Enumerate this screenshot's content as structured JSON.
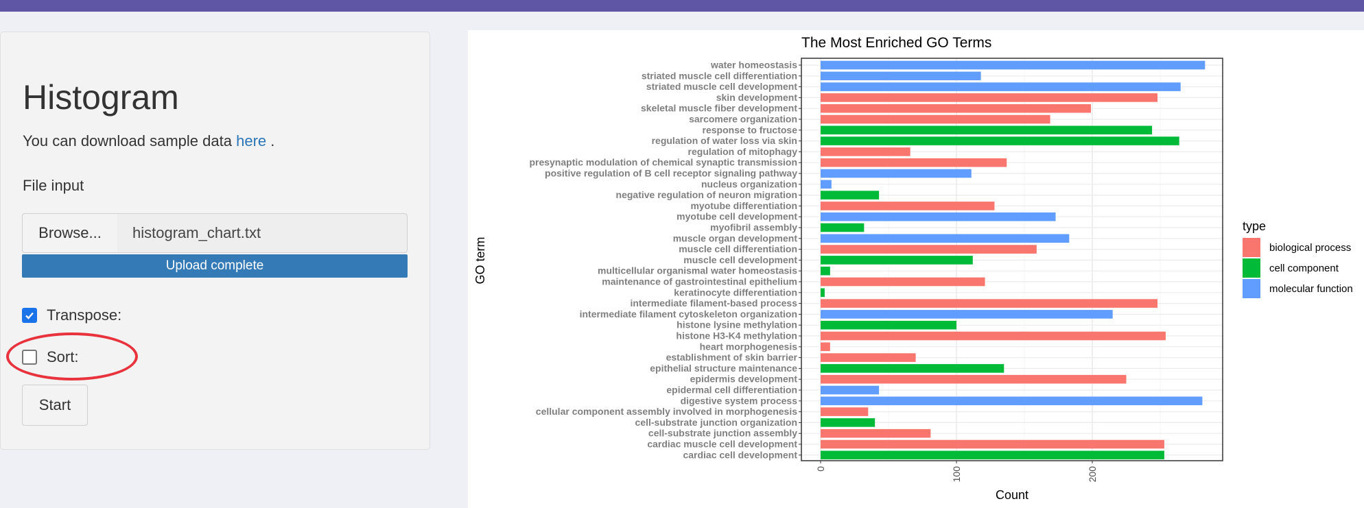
{
  "sidebar": {
    "title": "Histogram",
    "desc_prefix": "You can download sample data ",
    "desc_link": "here",
    "desc_suffix": " .",
    "file_input_label": "File input",
    "browse_label": "Browse...",
    "file_name": "histogram_chart.txt",
    "upload_status": "Upload complete",
    "upload_progress": 1.0,
    "transpose_label": "Transpose:",
    "transpose_checked": true,
    "sort_label": "Sort:",
    "sort_checked": false,
    "start_label": "Start"
  },
  "colors": {
    "topbar": "#5f57a5",
    "accent": "#337ab7",
    "biological process": "#f8766d",
    "cell component": "#00ba38",
    "molecular function": "#619cff",
    "highlight": "#e8323c"
  },
  "chart_data": {
    "type": "bar",
    "orientation": "horizontal",
    "title": "The Most Enriched GO Terms",
    "xlabel": "Count",
    "ylabel": "GO term",
    "xlim": [
      0,
      290
    ],
    "xticks": [
      "0",
      "100",
      "200"
    ],
    "xtick_values": [
      0,
      100,
      200
    ],
    "grid": true,
    "legend": {
      "title": "type",
      "placement": "right",
      "entries": [
        "biological process",
        "cell component",
        "molecular function"
      ]
    },
    "categories": [
      "water homeostasis",
      "striated muscle cell differentiation",
      "striated muscle cell development",
      "skin development",
      "skeletal muscle fiber development",
      "sarcomere organization",
      "response to fructose",
      "regulation of water loss via skin",
      "regulation of mitophagy",
      "presynaptic modulation of chemical synaptic transmission",
      "positive regulation of B cell receptor signaling pathway",
      "nucleus organization",
      "negative regulation of neuron migration",
      "myotube differentiation",
      "myotube cell development",
      "myofibril assembly",
      "muscle organ development",
      "muscle cell differentiation",
      "muscle cell development",
      "multicellular organismal water homeostasis",
      "maintenance of gastrointestinal epithelium",
      "keratinocyte differentiation",
      "intermediate filament-based process",
      "intermediate filament cytoskeleton organization",
      "histone lysine methylation",
      "histone H3-K4 methylation",
      "heart morphogenesis",
      "establishment of skin barrier",
      "epithelial structure maintenance",
      "epidermis development",
      "epidermal cell differentiation",
      "digestive system process",
      "cellular component assembly involved in morphogenesis",
      "cell-substrate junction organization",
      "cell-substrate junction assembly",
      "cardiac muscle cell development",
      "cardiac cell development"
    ],
    "values": [
      283,
      118,
      265,
      248,
      199,
      169,
      244,
      264,
      66,
      137,
      111,
      8,
      43,
      128,
      173,
      32,
      183,
      159,
      112,
      7,
      121,
      3,
      248,
      215,
      100,
      254,
      7,
      70,
      135,
      225,
      43,
      281,
      35,
      40,
      81,
      253,
      253
    ],
    "types": [
      "molecular function",
      "molecular function",
      "molecular function",
      "biological process",
      "biological process",
      "biological process",
      "cell component",
      "cell component",
      "biological process",
      "biological process",
      "molecular function",
      "molecular function",
      "cell component",
      "biological process",
      "molecular function",
      "cell component",
      "molecular function",
      "biological process",
      "cell component",
      "cell component",
      "biological process",
      "cell component",
      "biological process",
      "molecular function",
      "cell component",
      "biological process",
      "biological process",
      "biological process",
      "cell component",
      "biological process",
      "molecular function",
      "molecular function",
      "biological process",
      "cell component",
      "biological process",
      "biological process",
      "cell component"
    ]
  }
}
